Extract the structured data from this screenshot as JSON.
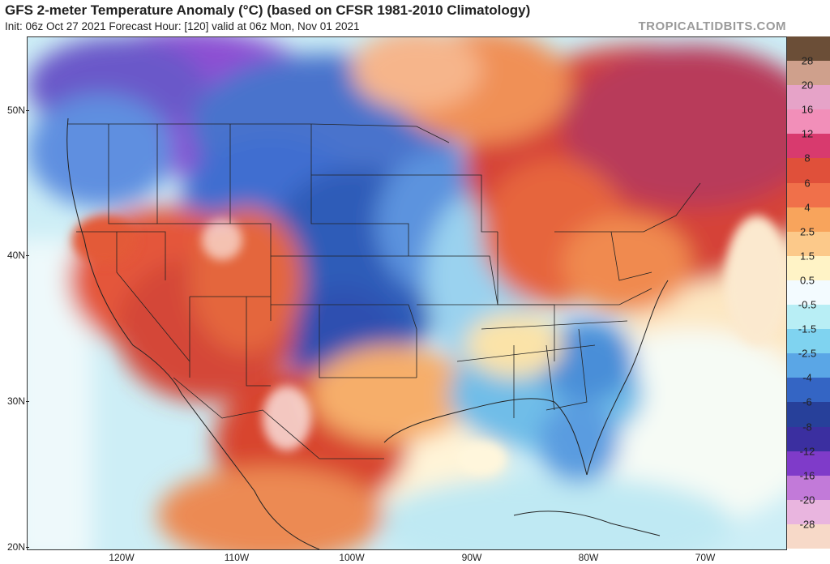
{
  "header": {
    "title": "GFS 2-meter Temperature Anomaly (°C) (based on CFSR 1981-2010 Climatology)",
    "subtitle": "Init: 06z Oct 27 2021   Forecast Hour: [120]   valid at 06z Mon, Nov 01 2021",
    "brand": "TROPICALTIDBITS.COM"
  },
  "axes": {
    "lat_labels": [
      "50N",
      "40N",
      "30N",
      "20N"
    ],
    "lon_labels": [
      "120W",
      "110W",
      "100W",
      "90W",
      "80W",
      "70W"
    ]
  },
  "colorbar": {
    "labels": [
      "28",
      "20",
      "16",
      "12",
      "8",
      "6",
      "4",
      "2.5",
      "1.5",
      "0.5",
      "-0.5",
      "-1.5",
      "-2.5",
      "-4",
      "-6",
      "-8",
      "-12",
      "-16",
      "-20",
      "-28"
    ],
    "colors": [
      "#6b4e37",
      "#cfa08c",
      "#e6a3c8",
      "#f28fb9",
      "#d83a6e",
      "#e0503a",
      "#f0704a",
      "#f8a45c",
      "#fcc98a",
      "#fff3c6",
      "#f3fbff",
      "#b8eef5",
      "#7fd3f0",
      "#5aa6e6",
      "#3465c4",
      "#27409a",
      "#3b2fa0",
      "#7f3bc9",
      "#c27ad9",
      "#e9b5df",
      "#f7d9c8"
    ]
  },
  "map": {
    "icons": [
      "land-ocean-shading",
      "state-borders",
      "coastline"
    ]
  }
}
